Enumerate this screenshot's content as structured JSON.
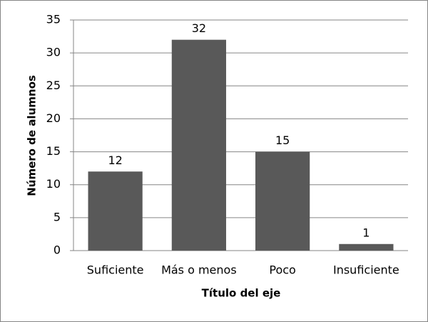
{
  "chart_data": {
    "type": "bar",
    "categories": [
      "Suficiente",
      "Más o menos",
      "Poco",
      "Insuficiente"
    ],
    "values": [
      12,
      32,
      15,
      1
    ],
    "color": "#595959",
    "ylim": [
      0,
      35
    ],
    "yticks": [
      0,
      5,
      10,
      15,
      20,
      25,
      30,
      35
    ],
    "grid": true,
    "y_label": "Número de alumnos",
    "x_label": "Título del eje"
  }
}
